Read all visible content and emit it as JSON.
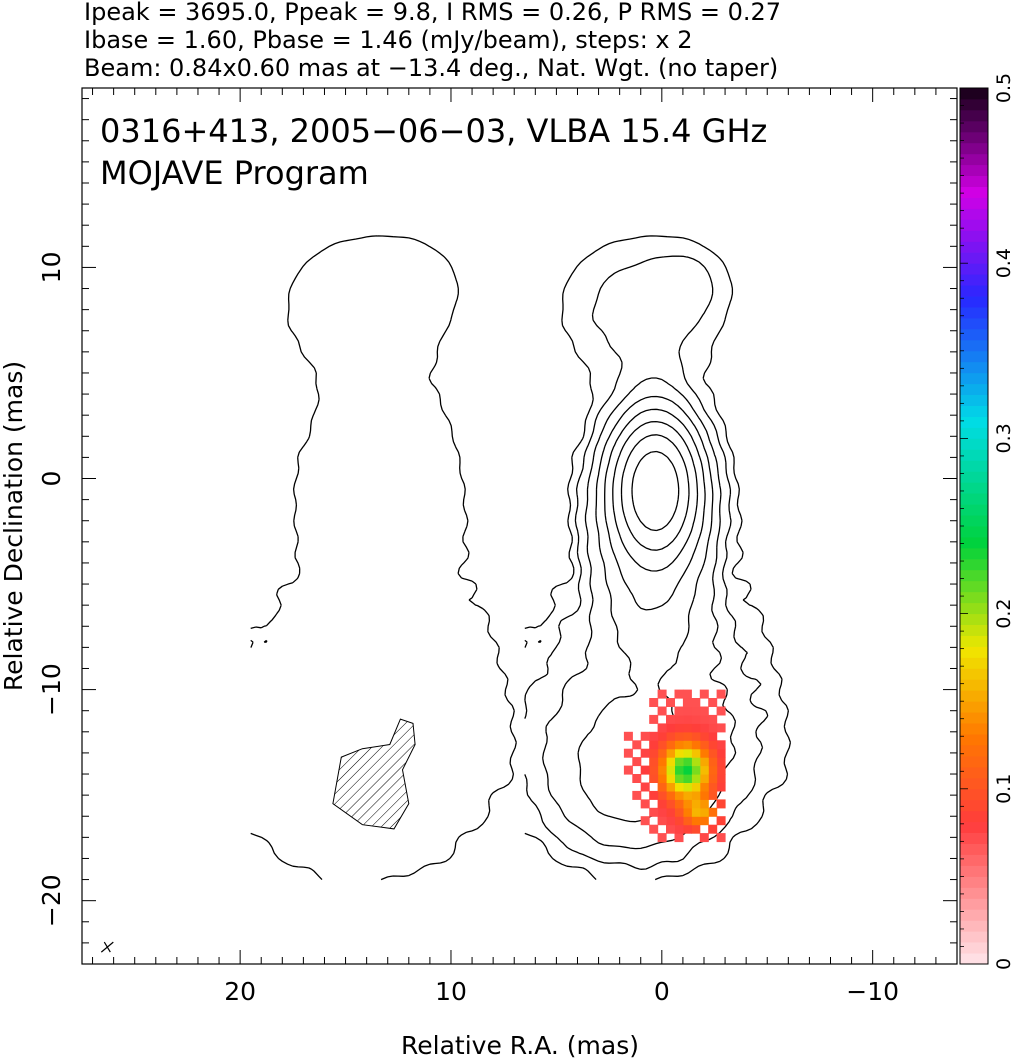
{
  "header": {
    "line1": "Ipeak = 3695.0, Ppeak = 9.8, I RMS = 0.26, P RMS = 0.27",
    "line2": "Ibase = 1.60, Pbase = 1.46 (mJy/beam), steps: x 2",
    "line3": "Beam: 0.84x0.60 mas at −13.4 deg., Nat. Wgt. (no taper)"
  },
  "annotation": {
    "line1": "0316+413, 2005−06−03, VLBA 15.4 GHz",
    "line2": "MOJAVE Program"
  },
  "chart_data": {
    "type": "contour",
    "xlabel": "Relative R.A. (mas)",
    "ylabel": "Relative Declination (mas)",
    "xlim": [
      27.5,
      -14
    ],
    "ylim": [
      -23,
      18.5
    ],
    "x_ticks": [
      20,
      10,
      0,
      -10
    ],
    "x_tick_labels": [
      "20",
      "10",
      "0",
      "−10"
    ],
    "y_ticks": [
      10,
      0,
      -10,
      -20
    ],
    "y_tick_labels": [
      "10",
      "0",
      "−10",
      "−20"
    ],
    "colorbar": {
      "range": [
        0,
        0.5
      ],
      "ticks": [
        0,
        0.1,
        0.2,
        0.3,
        0.4,
        0.5
      ],
      "tick_labels": [
        "0",
        "0.1",
        "0.2",
        "0.3",
        "0.4",
        "0.5"
      ]
    },
    "panels": [
      {
        "name": "left",
        "x_offset": 13,
        "levels": 1,
        "hatched_region": true
      },
      {
        "name": "right",
        "x_offset": 0,
        "levels": 10,
        "color_overlay": true
      }
    ],
    "peak": [
      0.3,
      -0.5
    ],
    "beam": {
      "major": 0.84,
      "minor": 0.6,
      "pa_deg": -13.4
    },
    "colors": {
      "frame": "#000000",
      "background": "#ffffff"
    }
  }
}
